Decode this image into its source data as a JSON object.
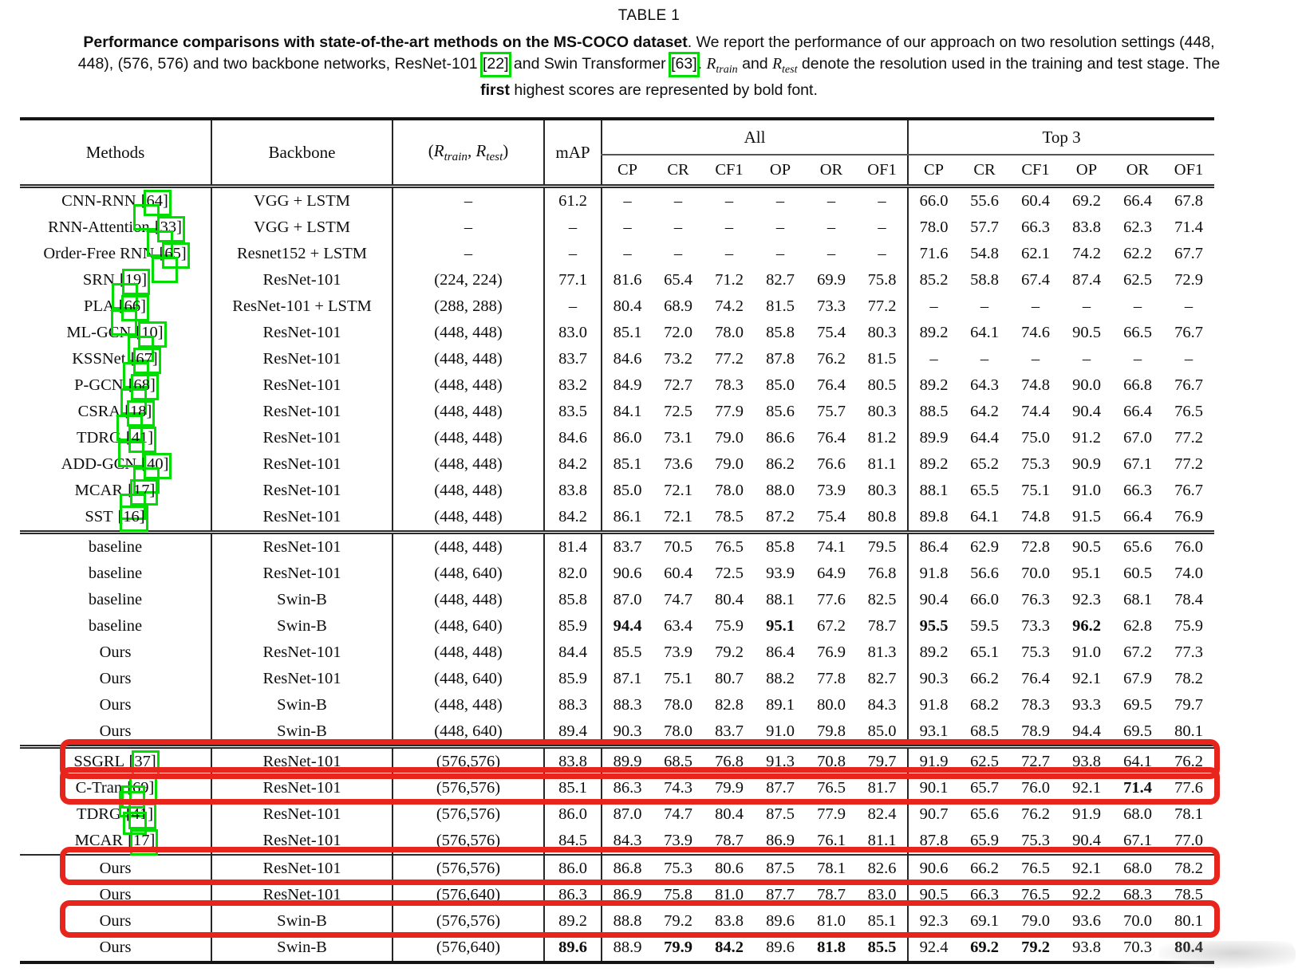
{
  "caption": {
    "label": "TABLE 1",
    "bold_lead": "Performance comparisons with state-of-the-art methods on the MS-COCO dataset",
    "seg1": ". We report the performance of our approach on two resolution settings (448, 448), (576, 576) and two backbone networks, ResNet-101 ",
    "cite1": "[22]",
    "seg2": " and Swin Transformer ",
    "cite2": "[63]",
    "seg3": ". ",
    "math_r1": "R",
    "math_sub1": "train",
    "seg4": " and ",
    "math_r2": "R",
    "math_sub2": "test",
    "seg5": " denote the resolution used in the training and test stage. The ",
    "bold_first": "first",
    "seg6": " highest scores are represented by bold font."
  },
  "annotations": {
    "green_box_color": "#00dd00",
    "red_box_color": "#e8251c"
  },
  "table": {
    "headers": {
      "methods": "Methods",
      "backbone": "Backbone",
      "res_open": "(",
      "res_r1": "R",
      "res_sub1": "train",
      "res_comma": ", ",
      "res_r2": "R",
      "res_sub2": "test",
      "res_close": ")",
      "map": "mAP",
      "group_all": "All",
      "group_top3": "Top 3",
      "metrics": [
        "CP",
        "CR",
        "CF1",
        "OP",
        "OR",
        "OF1"
      ]
    },
    "groups": [
      {
        "separator": "none",
        "rows": [
          {
            "method": "CNN-RNN",
            "cite": "[64]",
            "cite_extra": "below",
            "backbone": "VGG + LSTM",
            "res": "–",
            "map": "61.2",
            "all": [
              "–",
              "–",
              "–",
              "–",
              "–",
              "–"
            ],
            "top3": [
              "66.0",
              "55.6",
              "60.4",
              "69.2",
              "66.4",
              "67.8"
            ]
          },
          {
            "method": "RNN-Attention",
            "cite": "[33]",
            "cite_extra": "below",
            "backbone": "VGG + LSTM",
            "res": "–",
            "map": "–",
            "all": [
              "–",
              "–",
              "–",
              "–",
              "–",
              "–"
            ],
            "top3": [
              "78.0",
              "57.7",
              "66.3",
              "83.8",
              "62.3",
              "71.4"
            ]
          },
          {
            "method": "Order-Free RNN",
            "cite": "[65]",
            "cite_extra": "below",
            "backbone": "Resnet152 + LSTM",
            "res": "–",
            "map": "–",
            "all": [
              "–",
              "–",
              "–",
              "–",
              "–",
              "–"
            ],
            "top3": [
              "71.6",
              "54.8",
              "62.1",
              "74.2",
              "62.2",
              "67.7"
            ]
          },
          {
            "method": "SRN",
            "cite": "[19]",
            "cite_extra": "below",
            "backbone": "ResNet-101",
            "res": "(224, 224)",
            "map": "77.1",
            "all": [
              "81.6",
              "65.4",
              "71.2",
              "82.7",
              "69.9",
              "75.8"
            ],
            "top3": [
              "85.2",
              "58.8",
              "67.4",
              "87.4",
              "62.5",
              "72.9"
            ]
          },
          {
            "method": "PLA",
            "cite": "[66]",
            "cite_extra": "below",
            "backbone": "ResNet-101 + LSTM",
            "res": "(288, 288)",
            "map": "–",
            "all": [
              "80.4",
              "68.9",
              "74.2",
              "81.5",
              "73.3",
              "77.2"
            ],
            "top3": [
              "–",
              "–",
              "–",
              "–",
              "–",
              "–"
            ]
          },
          {
            "method": "ML-GCN",
            "cite": "[10]",
            "cite_extra": "below",
            "backbone": "ResNet-101",
            "res": "(448, 448)",
            "map": "83.0",
            "all": [
              "85.1",
              "72.0",
              "78.0",
              "85.8",
              "75.4",
              "80.3"
            ],
            "top3": [
              "89.2",
              "64.1",
              "74.6",
              "90.5",
              "66.5",
              "76.7"
            ]
          },
          {
            "method": "KSSNet",
            "cite": "[67]",
            "cite_extra": "below",
            "backbone": "ResNet-101",
            "res": "(448, 448)",
            "map": "83.7",
            "all": [
              "84.6",
              "73.2",
              "77.2",
              "87.8",
              "76.2",
              "81.5"
            ],
            "top3": [
              "–",
              "–",
              "–",
              "–",
              "–",
              "–"
            ]
          },
          {
            "method": "P-GCN",
            "cite": "[68]",
            "cite_extra": "below",
            "backbone": "ResNet-101",
            "res": "(448, 448)",
            "map": "83.2",
            "all": [
              "84.9",
              "72.7",
              "78.3",
              "85.0",
              "76.4",
              "80.5"
            ],
            "top3": [
              "89.2",
              "64.3",
              "74.8",
              "90.0",
              "66.8",
              "76.7"
            ]
          },
          {
            "method": "CSRA",
            "cite": "[18]",
            "cite_extra": "below",
            "backbone": "ResNet-101",
            "res": "(448, 448)",
            "map": "83.5",
            "all": [
              "84.1",
              "72.5",
              "77.9",
              "85.6",
              "75.7",
              "80.3"
            ],
            "top3": [
              "88.5",
              "64.2",
              "74.4",
              "90.4",
              "66.4",
              "76.5"
            ]
          },
          {
            "method": "TDRG",
            "cite": "[41]",
            "cite_extra": "below",
            "backbone": "ResNet-101",
            "res": "(448, 448)",
            "map": "84.6",
            "all": [
              "86.0",
              "73.1",
              "79.0",
              "86.6",
              "76.4",
              "81.2"
            ],
            "top3": [
              "89.9",
              "64.4",
              "75.0",
              "91.2",
              "67.0",
              "77.2"
            ]
          },
          {
            "method": "ADD-GCN",
            "cite": "[40]",
            "cite_extra": "below",
            "backbone": "ResNet-101",
            "res": "(448, 448)",
            "map": "84.2",
            "all": [
              "85.1",
              "73.6",
              "79.0",
              "86.2",
              "76.6",
              "81.1"
            ],
            "top3": [
              "89.2",
              "65.2",
              "75.3",
              "90.9",
              "67.1",
              "77.2"
            ]
          },
          {
            "method": "MCAR",
            "cite": "[17]",
            "cite_extra": "below",
            "backbone": "ResNet-101",
            "res": "(448, 448)",
            "map": "83.8",
            "all": [
              "85.0",
              "72.1",
              "78.0",
              "88.0",
              "73.9",
              "80.3"
            ],
            "top3": [
              "88.1",
              "65.5",
              "75.1",
              "91.0",
              "66.3",
              "76.7"
            ]
          },
          {
            "method": "SST",
            "cite": "[16]",
            "cite_extra": "none",
            "backbone": "ResNet-101",
            "res": "(448, 448)",
            "map": "84.2",
            "all": [
              "86.1",
              "72.1",
              "78.5",
              "87.2",
              "75.4",
              "80.8"
            ],
            "top3": [
              "89.8",
              "64.1",
              "74.8",
              "91.5",
              "66.4",
              "76.9"
            ]
          }
        ]
      },
      {
        "separator": "double",
        "rows": [
          {
            "method": "baseline",
            "backbone": "ResNet-101",
            "res": "(448, 448)",
            "map": "81.4",
            "all": [
              "83.7",
              "70.5",
              "76.5",
              "85.8",
              "74.1",
              "79.5"
            ],
            "top3": [
              "86.4",
              "62.9",
              "72.8",
              "90.5",
              "65.6",
              "76.0"
            ]
          },
          {
            "method": "baseline",
            "backbone": "ResNet-101",
            "res": "(448, 640)",
            "map": "82.0",
            "all": [
              "90.6",
              "60.4",
              "72.5",
              "93.9",
              "64.9",
              "76.8"
            ],
            "top3": [
              "91.8",
              "56.6",
              "70.0",
              "95.1",
              "60.5",
              "74.0"
            ]
          },
          {
            "method": "baseline",
            "backbone": "Swin-B",
            "res": "(448, 448)",
            "map": "85.8",
            "all": [
              "87.0",
              "74.7",
              "80.4",
              "88.1",
              "77.6",
              "82.5"
            ],
            "top3": [
              "90.4",
              "66.0",
              "76.3",
              "92.3",
              "68.1",
              "78.4"
            ]
          },
          {
            "method": "baseline",
            "backbone": "Swin-B",
            "res": "(448, 640)",
            "map": "85.9",
            "all": [
              "94.4",
              "63.4",
              "75.9",
              "95.1",
              "67.2",
              "78.7"
            ],
            "all_bold": [
              0,
              3
            ],
            "top3": [
              "95.5",
              "59.5",
              "73.3",
              "96.2",
              "62.8",
              "75.9"
            ],
            "top3_bold": [
              0,
              3
            ]
          },
          {
            "method": "Ours",
            "backbone": "ResNet-101",
            "res": "(448, 448)",
            "map": "84.4",
            "all": [
              "85.5",
              "73.9",
              "79.2",
              "86.4",
              "76.9",
              "81.3"
            ],
            "top3": [
              "89.2",
              "65.1",
              "75.3",
              "91.0",
              "67.2",
              "77.3"
            ]
          },
          {
            "method": "Ours",
            "backbone": "ResNet-101",
            "res": "(448, 640)",
            "map": "85.9",
            "all": [
              "87.1",
              "75.1",
              "80.7",
              "88.2",
              "77.8",
              "82.7"
            ],
            "top3": [
              "90.3",
              "66.2",
              "76.4",
              "92.1",
              "67.9",
              "78.2"
            ]
          },
          {
            "method": "Ours",
            "backbone": "Swin-B",
            "res": "(448, 448)",
            "map": "88.3",
            "all": [
              "88.3",
              "78.0",
              "82.8",
              "89.1",
              "80.0",
              "84.3"
            ],
            "top3": [
              "91.8",
              "68.2",
              "78.3",
              "93.3",
              "69.5",
              "79.7"
            ]
          },
          {
            "method": "Ours",
            "backbone": "Swin-B",
            "res": "(448, 640)",
            "map": "89.4",
            "all": [
              "90.3",
              "78.0",
              "83.7",
              "91.0",
              "79.8",
              "85.0"
            ],
            "top3": [
              "93.1",
              "68.5",
              "78.9",
              "94.4",
              "69.5",
              "80.1"
            ]
          }
        ]
      },
      {
        "separator": "double",
        "rows": [
          {
            "method": "SSGRL",
            "cite": "[37]",
            "cite_extra": "none",
            "backbone": "ResNet-101",
            "res": "(576,576)",
            "map": "83.8",
            "red_box": true,
            "all": [
              "89.9",
              "68.5",
              "76.8",
              "91.3",
              "70.8",
              "79.7"
            ],
            "top3": [
              "91.9",
              "62.5",
              "72.7",
              "93.8",
              "64.1",
              "76.2"
            ]
          },
          {
            "method": "C-Tran",
            "cite": "[69]",
            "cite_extra": "below",
            "backbone": "ResNet-101",
            "res": "(576,576)",
            "map": "85.1",
            "red_box": true,
            "all": [
              "86.3",
              "74.3",
              "79.9",
              "87.7",
              "76.5",
              "81.7"
            ],
            "top3": [
              "90.1",
              "65.7",
              "76.0",
              "92.1",
              "71.4",
              "77.6"
            ],
            "top3_bold": [
              4
            ]
          },
          {
            "method": "TDRG",
            "cite": "[41]",
            "cite_extra": "above",
            "backbone": "ResNet-101",
            "res": "(576,576)",
            "map": "86.0",
            "all": [
              "87.0",
              "74.7",
              "80.4",
              "87.5",
              "77.9",
              "82.4"
            ],
            "top3": [
              "90.7",
              "65.6",
              "76.2",
              "91.9",
              "68.0",
              "78.1"
            ]
          },
          {
            "method": "MCAR",
            "cite": "[17]",
            "cite_extra": "above",
            "backbone": "ResNet-101",
            "res": "(576,576)",
            "map": "84.5",
            "all": [
              "84.3",
              "73.9",
              "78.7",
              "86.9",
              "76.1",
              "81.1"
            ],
            "top3": [
              "87.8",
              "65.9",
              "75.3",
              "90.4",
              "67.1",
              "77.0"
            ]
          }
        ]
      },
      {
        "separator": "single",
        "rows": [
          {
            "method": "Ours",
            "backbone": "ResNet-101",
            "res": "(576,576)",
            "map": "86.0",
            "red_box": true,
            "all": [
              "86.8",
              "75.3",
              "80.6",
              "87.5",
              "78.1",
              "82.6"
            ],
            "top3": [
              "90.6",
              "66.2",
              "76.5",
              "92.1",
              "68.0",
              "78.2"
            ]
          },
          {
            "method": "Ours",
            "backbone": "ResNet-101",
            "res": "(576,640)",
            "map": "86.3",
            "all": [
              "86.9",
              "75.8",
              "81.0",
              "87.7",
              "78.7",
              "83.0"
            ],
            "top3": [
              "90.5",
              "66.3",
              "76.5",
              "92.2",
              "68.3",
              "78.5"
            ]
          },
          {
            "method": "Ours",
            "backbone": "Swin-B",
            "res": "(576,576)",
            "map": "89.2",
            "red_box": true,
            "all": [
              "88.8",
              "79.2",
              "83.8",
              "89.6",
              "81.0",
              "85.1"
            ],
            "top3": [
              "92.3",
              "69.1",
              "79.0",
              "93.6",
              "70.0",
              "80.1"
            ]
          },
          {
            "method": "Ours",
            "backbone": "Swin-B",
            "res": "(576,640)",
            "map": "89.6",
            "map_bold": true,
            "all": [
              "88.9",
              "79.9",
              "84.2",
              "89.6",
              "81.8",
              "85.5"
            ],
            "all_bold": [
              1,
              2,
              4,
              5
            ],
            "top3": [
              "92.4",
              "69.2",
              "79.2",
              "93.8",
              "70.3",
              "80.4"
            ],
            "top3_bold": [
              1,
              2,
              5
            ]
          }
        ]
      }
    ]
  }
}
